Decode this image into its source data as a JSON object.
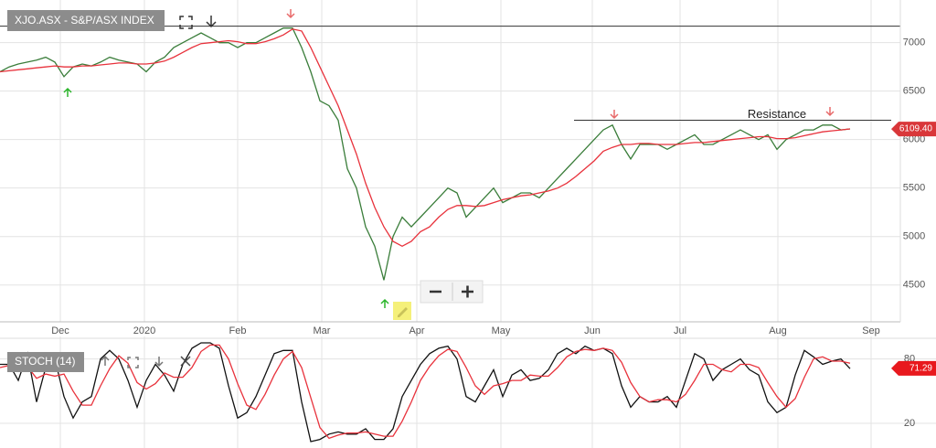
{
  "chart_data": [
    {
      "type": "line",
      "title": "XJO.ASX - S&P/ASX INDEX",
      "xlim": [
        0,
        98.5
      ],
      "xticks": [
        {
          "value": 6.6,
          "label": "Dec"
        },
        {
          "value": 15.8,
          "label": "2020"
        },
        {
          "value": 26.0,
          "label": "Feb"
        },
        {
          "value": 35.2,
          "label": "Mar"
        },
        {
          "value": 45.6,
          "label": "Apr"
        },
        {
          "value": 54.8,
          "label": "May"
        },
        {
          "value": 64.8,
          "label": "Jun"
        },
        {
          "value": 74.4,
          "label": "Jul"
        },
        {
          "value": 85.1,
          "label": "Aug"
        },
        {
          "value": 95.3,
          "label": "Sep"
        }
      ],
      "ylim": [
        4120,
        7440
      ],
      "yticks": [
        4500,
        5000,
        5500,
        6000,
        6500,
        7000
      ],
      "grid": true,
      "series": [
        {
          "color": "#3a7d3a",
          "values": [
            6700,
            6750,
            6780,
            6800,
            6820,
            6850,
            6800,
            6650,
            6750,
            6780,
            6760,
            6800,
            6850,
            6820,
            6800,
            6780,
            6700,
            6800,
            6850,
            6950,
            7000,
            7050,
            7100,
            7050,
            7000,
            7000,
            6950,
            7000,
            7000,
            7050,
            7100,
            7150,
            7150,
            6950,
            6700,
            6400,
            6350,
            6200,
            5700,
            5500,
            5100,
            4900,
            4550,
            5000,
            5200,
            5100,
            5200,
            5300,
            5400,
            5500,
            5450,
            5200,
            5300,
            5400,
            5500,
            5350,
            5400,
            5450,
            5450,
            5400,
            5500,
            5600,
            5700,
            5800,
            5900,
            6000,
            6100,
            6150,
            5950,
            5800,
            5950,
            5950,
            5950,
            5900,
            5950,
            6000,
            6050,
            5950,
            5950,
            6000,
            6050,
            6100,
            6050,
            6000,
            6050,
            5900,
            6000,
            6050,
            6100,
            6100,
            6150,
            6150,
            6100,
            6110
          ]
        },
        {
          "color": "#e8323c",
          "values": [
            6700,
            6710,
            6720,
            6730,
            6740,
            6750,
            6760,
            6750,
            6750,
            6760,
            6760,
            6770,
            6780,
            6790,
            6790,
            6780,
            6780,
            6790,
            6810,
            6850,
            6900,
            6950,
            6990,
            7000,
            7010,
            7020,
            7010,
            6990,
            6990,
            7010,
            7040,
            7080,
            7140,
            7120,
            6950,
            6750,
            6550,
            6350,
            6100,
            5850,
            5550,
            5300,
            5100,
            4950,
            4900,
            4950,
            5050,
            5100,
            5200,
            5280,
            5320,
            5320,
            5310,
            5320,
            5350,
            5380,
            5400,
            5420,
            5430,
            5450,
            5470,
            5500,
            5550,
            5620,
            5700,
            5780,
            5880,
            5920,
            5950,
            5950,
            5960,
            5960,
            5950,
            5950,
            5950,
            5960,
            5970,
            5970,
            5980,
            5990,
            6000,
            6010,
            6020,
            6030,
            6030,
            6010,
            6010,
            6020,
            6040,
            6060,
            6080,
            6090,
            6100,
            6110
          ]
        }
      ],
      "high_line": 7170,
      "resistance": {
        "label": "Resistance",
        "value": 6200
      },
      "last_value": {
        "value": 6109.4,
        "label": "6109.40"
      }
    },
    {
      "type": "line",
      "title": "STOCH (14)",
      "xlim": [
        0,
        98.5
      ],
      "ylim": [
        -3,
        101
      ],
      "yticks": [
        20,
        80
      ],
      "grid": true,
      "series": [
        {
          "color": "#111111",
          "values": [
            75,
            75,
            60,
            85,
            40,
            72,
            80,
            45,
            25,
            40,
            45,
            80,
            88,
            80,
            60,
            35,
            60,
            75,
            65,
            50,
            75,
            90,
            95,
            95,
            90,
            55,
            25,
            30,
            45,
            65,
            85,
            88,
            88,
            40,
            3,
            5,
            10,
            12,
            10,
            10,
            15,
            5,
            5,
            15,
            45,
            60,
            75,
            85,
            90,
            92,
            80,
            45,
            40,
            55,
            70,
            45,
            65,
            70,
            60,
            62,
            70,
            85,
            90,
            85,
            92,
            88,
            90,
            85,
            55,
            35,
            45,
            40,
            40,
            45,
            35,
            60,
            85,
            80,
            60,
            70,
            75,
            80,
            70,
            65,
            40,
            30,
            35,
            65,
            88,
            82,
            75,
            78,
            80,
            71
          ]
        },
        {
          "color": "#e8323c",
          "values": [
            72,
            74,
            70,
            73,
            62,
            66,
            64,
            66,
            50,
            37,
            37,
            55,
            71,
            83,
            76,
            58,
            52,
            57,
            67,
            63,
            63,
            72,
            87,
            93,
            93,
            80,
            57,
            37,
            33,
            47,
            65,
            80,
            87,
            72,
            44,
            16,
            6,
            9,
            11,
            11,
            12,
            10,
            8,
            8,
            22,
            40,
            60,
            73,
            83,
            89,
            87,
            72,
            55,
            47,
            55,
            57,
            60,
            60,
            65,
            64,
            64,
            72,
            82,
            87,
            89,
            88,
            90,
            88,
            77,
            58,
            45,
            40,
            42,
            42,
            40,
            47,
            60,
            75,
            75,
            70,
            68,
            75,
            75,
            72,
            58,
            45,
            35,
            43,
            63,
            80,
            82,
            78,
            78,
            76
          ]
        }
      ],
      "last_value": 71.29
    }
  ]
}
